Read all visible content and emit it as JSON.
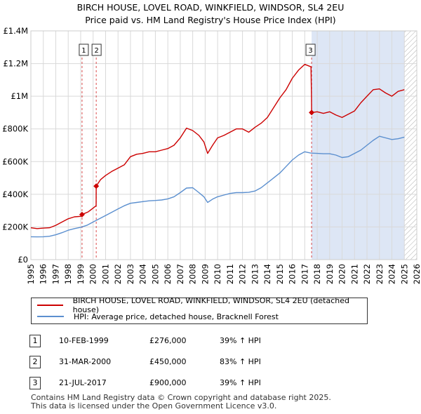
{
  "title_line1": "BIRCH HOUSE, LOVEL ROAD, WINKFIELD, WINDSOR, SL4 2EU",
  "title_line2": "Price paid vs. HM Land Registry's House Price Index (HPI)",
  "chart_data": {
    "type": "line",
    "title": "BIRCH HOUSE, LOVEL ROAD, WINKFIELD, WINDSOR, SL4 2EU — Price paid vs. HM Land Registry's House Price Index (HPI)",
    "xlabel": "",
    "ylabel": "",
    "xlim": [
      1995,
      2026
    ],
    "ylim": [
      0,
      1400000
    ],
    "grid": true,
    "y_ticks": [
      0,
      200000,
      400000,
      600000,
      800000,
      1000000,
      1200000,
      1400000
    ],
    "y_tick_labels": [
      "£0",
      "£200K",
      "£400K",
      "£600K",
      "£800K",
      "£1M",
      "£1.2M",
      "£1.4M"
    ],
    "x_ticks": [
      "1995",
      "1996",
      "1997",
      "1998",
      "1999",
      "2000",
      "2001",
      "2002",
      "2003",
      "2004",
      "2005",
      "2006",
      "2007",
      "2008",
      "2009",
      "2010",
      "2011",
      "2012",
      "2013",
      "2014",
      "2015",
      "2016",
      "2017",
      "2018",
      "2019",
      "2020",
      "2021",
      "2022",
      "2023",
      "2024",
      "2025",
      "2026"
    ],
    "sale_shading_from": 2017.55,
    "future_hatch_from": 2025.0,
    "series": [
      {
        "name": "BIRCH HOUSE, LOVEL ROAD, WINKFIELD, WINDSOR, SL4 2EU (detached house)",
        "color": "#cc0000",
        "x": [
          1995.0,
          1995.5,
          1996.0,
          1996.5,
          1997.0,
          1997.5,
          1998.0,
          1998.5,
          1999.0,
          1999.11,
          1999.6,
          2000.0,
          2000.24,
          2000.25,
          2000.6,
          2001.0,
          2001.5,
          2002.0,
          2002.5,
          2003.0,
          2003.5,
          2004.0,
          2004.5,
          2005.0,
          2005.5,
          2006.0,
          2006.5,
          2007.0,
          2007.5,
          2008.0,
          2008.5,
          2008.9,
          2009.2,
          2009.6,
          2010.0,
          2010.5,
          2011.0,
          2011.5,
          2012.0,
          2012.5,
          2013.0,
          2013.5,
          2014.0,
          2014.5,
          2015.0,
          2015.5,
          2016.0,
          2016.5,
          2017.0,
          2017.5,
          2017.54,
          2017.55,
          2018.0,
          2018.5,
          2019.0,
          2019.5,
          2020.0,
          2020.5,
          2021.0,
          2021.5,
          2022.0,
          2022.5,
          2023.0,
          2023.5,
          2024.0,
          2024.5,
          2025.0
        ],
        "y": [
          195000,
          190000,
          193000,
          195000,
          210000,
          230000,
          250000,
          262000,
          265000,
          276000,
          292000,
          315000,
          330000,
          450000,
          490000,
          515000,
          540000,
          560000,
          580000,
          630000,
          645000,
          650000,
          660000,
          660000,
          670000,
          680000,
          700000,
          745000,
          805000,
          790000,
          760000,
          720000,
          650000,
          700000,
          745000,
          760000,
          780000,
          800000,
          800000,
          780000,
          810000,
          835000,
          870000,
          930000,
          990000,
          1040000,
          1110000,
          1160000,
          1195000,
          1180000,
          1000000,
          900000,
          905000,
          895000,
          905000,
          885000,
          870000,
          890000,
          910000,
          960000,
          1000000,
          1040000,
          1045000,
          1020000,
          1000000,
          1030000,
          1040000
        ]
      },
      {
        "name": "HPI: Average price, detached house, Bracknell Forest",
        "color": "#5b8fcf",
        "x": [
          1995.0,
          1995.5,
          1996.0,
          1996.5,
          1997.0,
          1997.5,
          1998.0,
          1998.5,
          1999.0,
          1999.5,
          2000.0,
          2000.5,
          2001.0,
          2001.5,
          2002.0,
          2002.5,
          2003.0,
          2003.5,
          2004.0,
          2004.5,
          2005.0,
          2005.5,
          2006.0,
          2006.5,
          2007.0,
          2007.5,
          2008.0,
          2008.5,
          2008.9,
          2009.2,
          2009.6,
          2010.0,
          2010.5,
          2011.0,
          2011.5,
          2012.0,
          2012.5,
          2013.0,
          2013.5,
          2014.0,
          2014.5,
          2015.0,
          2015.5,
          2016.0,
          2016.5,
          2017.0,
          2017.5,
          2018.0,
          2018.5,
          2019.0,
          2019.5,
          2020.0,
          2020.5,
          2021.0,
          2021.5,
          2022.0,
          2022.5,
          2023.0,
          2023.5,
          2024.0,
          2024.5,
          2025.0
        ],
        "y": [
          140000,
          139000,
          140000,
          143000,
          152000,
          165000,
          180000,
          190000,
          198000,
          210000,
          230000,
          250000,
          270000,
          290000,
          310000,
          330000,
          345000,
          350000,
          355000,
          360000,
          362000,
          365000,
          372000,
          385000,
          410000,
          438000,
          440000,
          410000,
          385000,
          350000,
          370000,
          385000,
          395000,
          405000,
          410000,
          410000,
          412000,
          420000,
          440000,
          470000,
          500000,
          530000,
          570000,
          610000,
          640000,
          660000,
          652000,
          650000,
          648000,
          648000,
          640000,
          625000,
          630000,
          650000,
          670000,
          700000,
          730000,
          755000,
          745000,
          735000,
          740000,
          750000
        ]
      }
    ],
    "sales": [
      {
        "label": "1",
        "x": 1999.11,
        "y": 276000
      },
      {
        "label": "2",
        "x": 2000.25,
        "y": 450000
      },
      {
        "label": "3",
        "x": 2017.55,
        "y": 900000
      }
    ]
  },
  "legend": {
    "property": "BIRCH HOUSE, LOVEL ROAD, WINKFIELD, WINDSOR, SL4 2EU (detached house)",
    "hpi": "HPI: Average price, detached house, Bracknell Forest"
  },
  "transactions": [
    {
      "num": "1",
      "date": "10-FEB-1999",
      "price": "£276,000",
      "hpi": "39% ↑ HPI"
    },
    {
      "num": "2",
      "date": "31-MAR-2000",
      "price": "£450,000",
      "hpi": "83% ↑ HPI"
    },
    {
      "num": "3",
      "date": "21-JUL-2017",
      "price": "£900,000",
      "hpi": "39% ↑ HPI"
    }
  ],
  "footer": {
    "line1": "Contains HM Land Registry data © Crown copyright and database right 2025.",
    "line2": "This data is licensed under the Open Government Licence v3.0."
  }
}
